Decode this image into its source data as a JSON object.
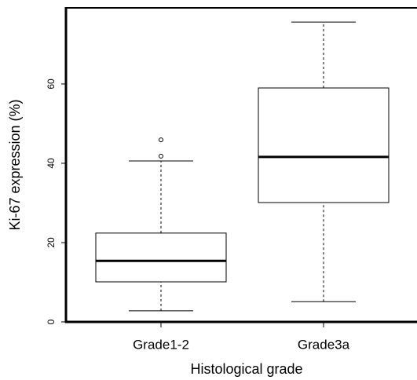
{
  "chart_data": {
    "type": "box",
    "y_label": "Ki-67 expression (%)",
    "x_label": "Histological grade",
    "categories": [
      "Grade1-2",
      "Grade3a"
    ],
    "boxes": [
      {
        "whisker_low": 2.8,
        "q1": 10.1,
        "median": 15.4,
        "q3": 22.4,
        "whisker_high": 40.6,
        "outliers": [
          41.8,
          45.9
        ]
      },
      {
        "whisker_low": 5.1,
        "q1": 30.1,
        "median": 41.6,
        "q3": 59.0,
        "whisker_high": 75.6,
        "outliers": []
      }
    ],
    "ylim": [
      0,
      79.2
    ],
    "yticks": [
      0,
      20,
      40,
      60
    ],
    "color": "#000000"
  }
}
